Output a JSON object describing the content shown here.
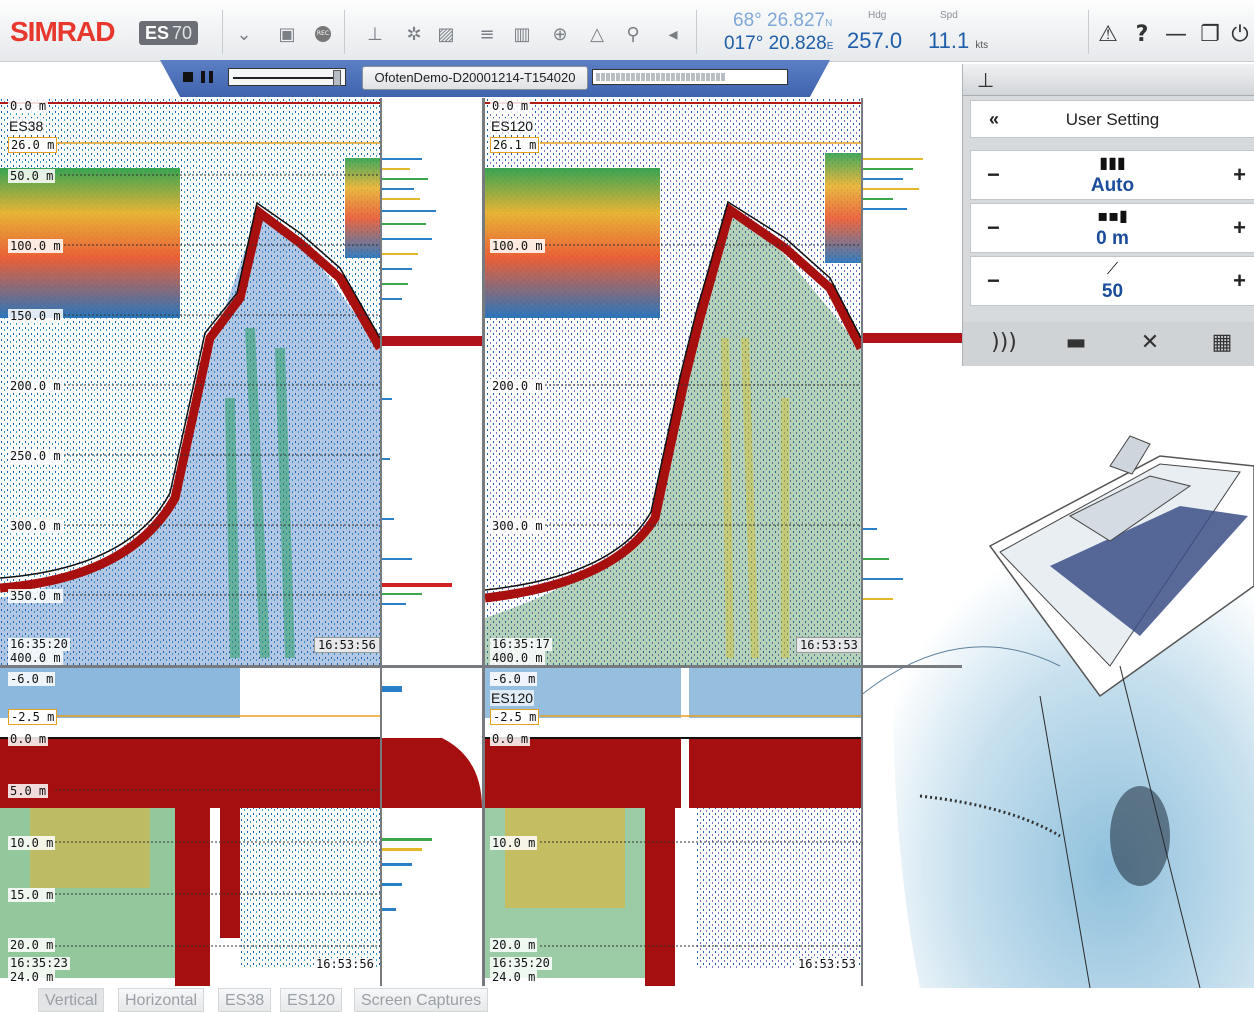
{
  "app": {
    "brand": "SIMRAD",
    "product": "ES",
    "model": "70"
  },
  "toolbar": {
    "icons": [
      "expand-icon",
      "camera-icon",
      "record-icon",
      "depth-icon",
      "scatter-icon",
      "hatch-icon",
      "layers-icon",
      "bars-icon",
      "target-icon",
      "sonar-icon",
      "search-icon",
      "collapse-icon"
    ],
    "record_label": "REC"
  },
  "navigation": {
    "latitude": "68° 26.827",
    "lat_hemi": "N",
    "longitude": "017° 20.828",
    "lon_hemi": "E",
    "heading_label": "Hdg",
    "heading": "257.0",
    "speed_label": "Spd",
    "speed": "11.1",
    "speed_unit": "kts"
  },
  "window_controls": [
    "warning-icon",
    "help-icon",
    "minimize-icon",
    "restore-icon",
    "power-icon"
  ],
  "window_glyphs": {
    "warning": "⚠",
    "help": "?",
    "minimize": "—",
    "restore": "❐",
    "power": "⏻"
  },
  "replay": {
    "file": "OfotenDemo-D20001214-T154020",
    "slider_value": 0.95,
    "progress": 0.68
  },
  "echograms": {
    "es38_top": {
      "channel": "ES38",
      "range_start": "0.0 m",
      "marker": "26.0 m",
      "depth_labels": [
        "50.0 m",
        "100.0 m",
        "150.0 m",
        "200.0 m",
        "250.0 m",
        "300.0 m",
        "350.0 m",
        "400.0 m"
      ],
      "time_left": "16:35:20",
      "time_right": "16:53:56"
    },
    "es120_top": {
      "channel": "ES120",
      "range_start": "0.0 m",
      "marker": "26.1 m",
      "depth_labels": [
        "100.0 m",
        "200.0 m",
        "300.0 m",
        "400.0 m"
      ],
      "time_left": "16:35:17",
      "time_right": "16:53:53"
    },
    "es38_bottom": {
      "top_label": "-6.0 m",
      "marker": "-2.5 m",
      "zero": "0.0 m",
      "depth_labels": [
        "5.0 m",
        "10.0 m",
        "15.0 m",
        "20.0 m",
        "24.0 m"
      ],
      "time_left": "16:35:23",
      "time_right": "16:53:56"
    },
    "es120_bottom": {
      "channel": "ES120",
      "top_label": "-6.0 m",
      "marker": "-2.5 m",
      "zero": "0.0 m",
      "depth_labels": [
        "10.0 m",
        "20.0 m",
        "24.0 m"
      ],
      "time_left": "16:35:20",
      "time_right": "16:53:53"
    }
  },
  "settings": {
    "title": "User Setting",
    "back": "«",
    "controls": [
      {
        "name": "gain-control",
        "value": "Auto"
      },
      {
        "name": "range-control",
        "value": "0 m"
      },
      {
        "name": "tvg-control",
        "value": "50"
      }
    ],
    "minus": "−",
    "plus": "+",
    "tabs": [
      "echosounder-icon",
      "display-icon",
      "tools-icon",
      "layout-icon"
    ]
  },
  "bottom_tabs": [
    "Vertical",
    "Horizontal",
    "ES38",
    "ES120",
    "Screen Captures"
  ]
}
